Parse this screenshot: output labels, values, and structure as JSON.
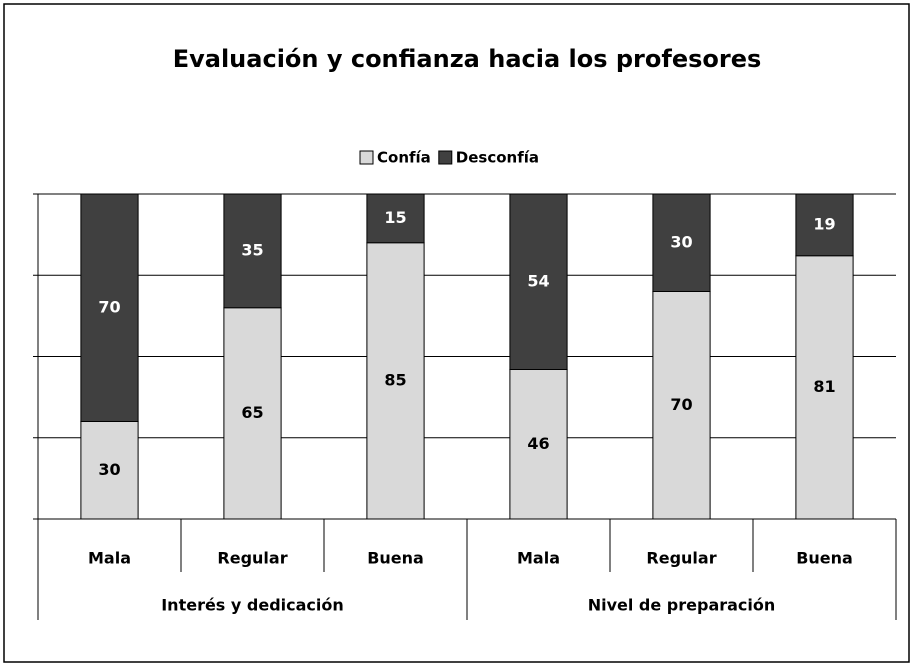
{
  "chart_data": {
    "type": "stacked_bar",
    "title": "Evaluación y confianza hacia los profesores",
    "categories": [
      "Mala",
      "Regular",
      "Buena",
      "Mala",
      "Regular",
      "Buena"
    ],
    "groups": [
      "Interés y dedicación",
      "Nivel de preparación"
    ],
    "series": [
      {
        "name": "Confía",
        "color": "#d9d9d9",
        "values": [
          30,
          65,
          85,
          46,
          70,
          81
        ]
      },
      {
        "name": "Desconfía",
        "color": "#404040",
        "values": [
          70,
          35,
          15,
          54,
          30,
          19
        ]
      }
    ],
    "ylim": [
      0,
      100
    ],
    "yticks": [
      0,
      25,
      50,
      75,
      100
    ],
    "grid": true,
    "legend": "top"
  }
}
